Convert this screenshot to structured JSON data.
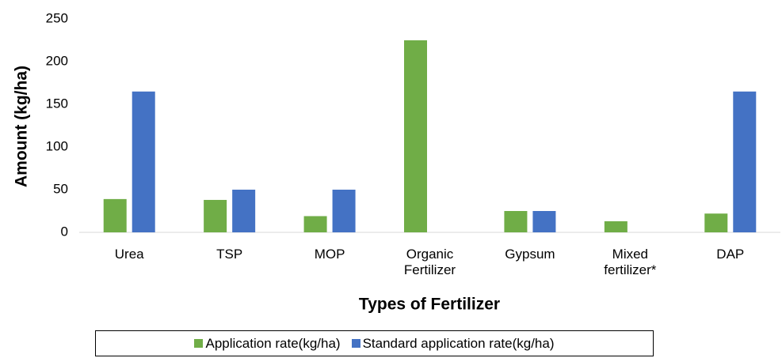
{
  "chart_data": {
    "type": "bar",
    "x_label": "Types of Fertilizer",
    "y_label": "Amount (kg/ha)",
    "categories": [
      "Urea",
      "TSP",
      "MOP",
      "Organic Fertilizer",
      "Gypsum",
      "Mixed fertilizer*",
      "DAP"
    ],
    "series": [
      {
        "name": "Application rate(kg/ha)",
        "color": "#70ad47",
        "values": [
          39,
          38,
          19,
          225,
          25,
          13,
          22
        ]
      },
      {
        "name": "Standard application rate(kg/ha)",
        "color": "#4472c4",
        "values": [
          165,
          50,
          50,
          null,
          25,
          null,
          165
        ]
      }
    ],
    "ylim": [
      0,
      250
    ],
    "yticks": [
      0,
      50,
      100,
      150,
      200,
      250
    ],
    "grid": false
  }
}
